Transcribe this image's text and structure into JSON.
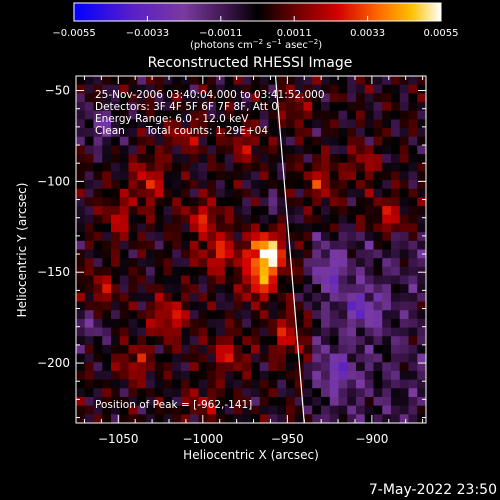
{
  "chart_data": {
    "type": "heatmap",
    "title": "Reconstructed RHESSI Image",
    "xlabel": "Heliocentric X (arcsec)",
    "ylabel": "Heliocentric Y (arcsec)",
    "xlim": [
      -1075,
      -868
    ],
    "ylim": [
      -233,
      -42
    ],
    "x_ticks": [
      -1050,
      -1000,
      -950,
      -900
    ],
    "x_tick_labels": [
      "−1050",
      "−1000",
      "−950",
      "−900"
    ],
    "y_ticks": [
      -50,
      -100,
      -150,
      -200
    ],
    "y_tick_labels": [
      "−50",
      "−100",
      "−150",
      "−200"
    ],
    "colorbar": {
      "min": -0.0055,
      "max": 0.0055,
      "ticks": [
        -0.0055,
        -0.0033,
        -0.0011,
        0.0011,
        0.0033,
        0.0055
      ],
      "tick_labels": [
        "−0.0055",
        "−0.0033",
        "−0.0011",
        "0.0011",
        "0.0033",
        "0.0055"
      ],
      "unit_label": "(photons cm",
      "unit_exp1": "−2",
      "unit_mid1": " s",
      "unit_exp2": "−1",
      "unit_mid2": " asec",
      "unit_exp3": "−2",
      "unit_end": ")"
    },
    "peak": {
      "x": -962,
      "y": -141,
      "value": 0.0055
    },
    "limb_line": {
      "x_start": -957,
      "y_start": -42,
      "x_end": -940,
      "y_end": -233
    },
    "blobs": [
      {
        "x": -962,
        "y": -141,
        "sx": 7,
        "sy": 9,
        "amp": 0.0058
      },
      {
        "x": -968,
        "y": -158,
        "sx": 6,
        "sy": 6,
        "amp": 0.0026
      },
      {
        "x": -990,
        "y": -140,
        "sx": 9,
        "sy": 8,
        "amp": 0.0024
      },
      {
        "x": -1000,
        "y": -120,
        "sx": 8,
        "sy": 7,
        "amp": 0.0022
      },
      {
        "x": -1032,
        "y": -100,
        "sx": 7,
        "sy": 10,
        "amp": 0.0022
      },
      {
        "x": -1050,
        "y": -120,
        "sx": 6,
        "sy": 9,
        "amp": 0.0019
      },
      {
        "x": -1020,
        "y": -175,
        "sx": 8,
        "sy": 8,
        "amp": 0.0024
      },
      {
        "x": -1040,
        "y": -200,
        "sx": 7,
        "sy": 7,
        "amp": 0.002
      },
      {
        "x": -985,
        "y": -195,
        "sx": 8,
        "sy": 7,
        "amp": 0.002
      },
      {
        "x": -950,
        "y": -185,
        "sx": 7,
        "sy": 9,
        "amp": 0.0021
      },
      {
        "x": -930,
        "y": -100,
        "sx": 7,
        "sy": 8,
        "amp": 0.002
      },
      {
        "x": -905,
        "y": -90,
        "sx": 6,
        "sy": 7,
        "amp": 0.0018
      },
      {
        "x": -890,
        "y": -120,
        "sx": 7,
        "sy": 8,
        "amp": 0.0019
      },
      {
        "x": -1010,
        "y": -75,
        "sx": 8,
        "sy": 6,
        "amp": 0.0016
      },
      {
        "x": -975,
        "y": -80,
        "sx": 7,
        "sy": 7,
        "amp": 0.0017
      },
      {
        "x": -945,
        "y": -60,
        "sx": 6,
        "sy": 7,
        "amp": 0.0016
      },
      {
        "x": -1060,
        "y": -160,
        "sx": 6,
        "sy": 8,
        "amp": 0.0018
      },
      {
        "x": -1000,
        "y": -222,
        "sx": 8,
        "sy": 6,
        "amp": 0.0015
      },
      {
        "x": -925,
        "y": -150,
        "sx": 7,
        "sy": 8,
        "amp": -0.002
      },
      {
        "x": -905,
        "y": -170,
        "sx": 8,
        "sy": 8,
        "amp": -0.0022
      },
      {
        "x": -920,
        "y": -205,
        "sx": 8,
        "sy": 8,
        "amp": -0.002
      },
      {
        "x": -1060,
        "y": -70,
        "sx": 8,
        "sy": 8,
        "amp": -0.0018
      },
      {
        "x": -1065,
        "y": -180,
        "sx": 6,
        "sy": 7,
        "amp": -0.0016
      },
      {
        "x": -960,
        "y": -115,
        "sx": 5,
        "sy": 6,
        "amp": -0.0012
      }
    ]
  },
  "annotations": {
    "time_range": "25-Nov-2006 03:40:04.000 to 03:41:52.000",
    "detectors": "Detectors: 3F 4F 5F 6F 7F 8F, Att 0",
    "energy": "Energy Range: 6.0 - 12.0 keV",
    "clean_label": "Clean",
    "total_counts": "Total counts: 1.29E+04",
    "peak_position": "Position of Peak = [-962,-141]"
  },
  "footer": {
    "date": "7-May-2022 23:50"
  }
}
